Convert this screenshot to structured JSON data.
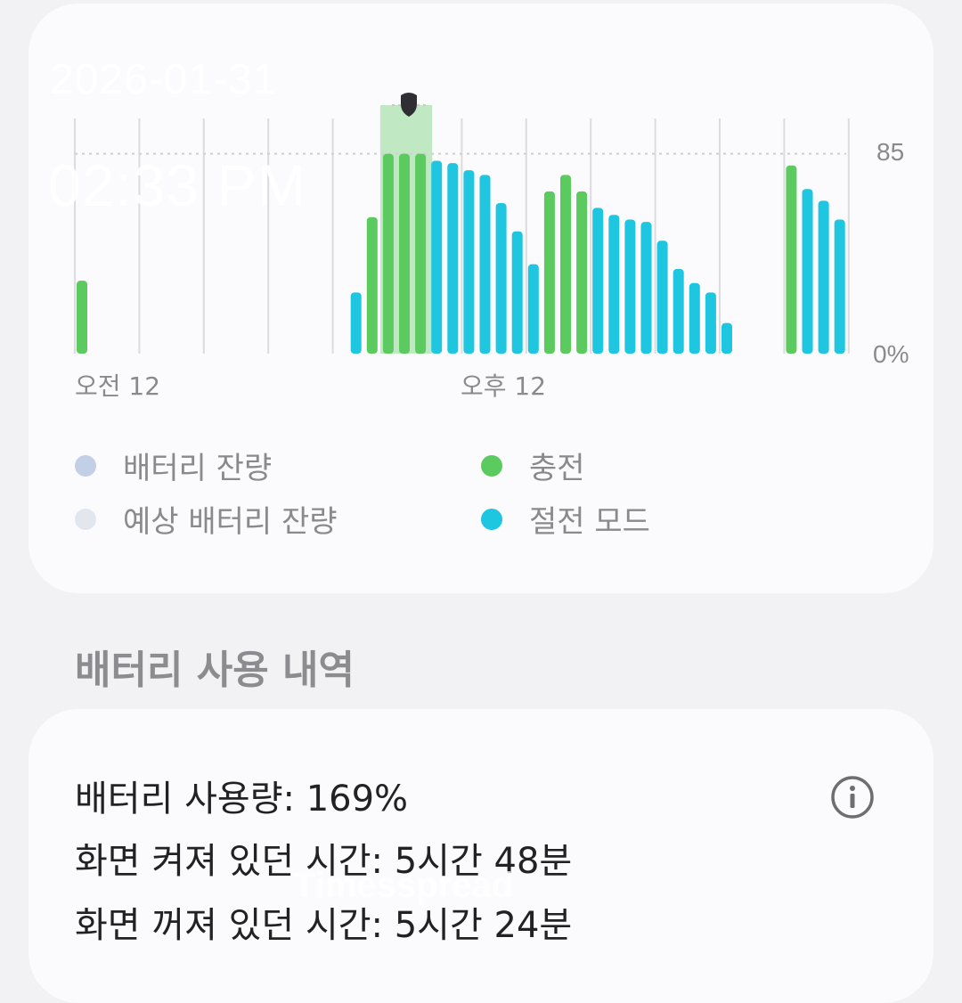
{
  "overlay": {
    "date": "2026-01-31",
    "time": "02:33 PM"
  },
  "chart_data": {
    "type": "bar",
    "y_axis_labels": [
      "85",
      "0%"
    ],
    "x_axis_labels": [
      "오전 12",
      "오후 12"
    ],
    "dotted_reference_level": 85,
    "ylim": [
      0,
      100
    ],
    "colors": {
      "charging": "#5ccb5f",
      "power_saving": "#1ec6e0",
      "highlight": "#bfe8c3",
      "grid": "#dcdcdf",
      "axis_text": "#8a8a8e"
    },
    "bars": [
      {
        "slot": 0,
        "value": 31,
        "mode": "charging"
      },
      {
        "slot": 17,
        "value": 26,
        "mode": "power_saving"
      },
      {
        "slot": 18,
        "value": 58,
        "mode": "charging"
      },
      {
        "slot": 19,
        "value": 85,
        "mode": "charging"
      },
      {
        "slot": 20,
        "value": 85,
        "mode": "charging"
      },
      {
        "slot": 21,
        "value": 85,
        "mode": "charging"
      },
      {
        "slot": 22,
        "value": 82,
        "mode": "power_saving"
      },
      {
        "slot": 23,
        "value": 81,
        "mode": "power_saving"
      },
      {
        "slot": 24,
        "value": 78,
        "mode": "power_saving"
      },
      {
        "slot": 25,
        "value": 76,
        "mode": "power_saving"
      },
      {
        "slot": 26,
        "value": 64,
        "mode": "power_saving"
      },
      {
        "slot": 27,
        "value": 52,
        "mode": "power_saving"
      },
      {
        "slot": 28,
        "value": 38,
        "mode": "power_saving"
      },
      {
        "slot": 29,
        "value": 69,
        "mode": "charging"
      },
      {
        "slot": 30,
        "value": 76,
        "mode": "charging"
      },
      {
        "slot": 31,
        "value": 69,
        "mode": "charging"
      },
      {
        "slot": 32,
        "value": 62,
        "mode": "power_saving"
      },
      {
        "slot": 33,
        "value": 59,
        "mode": "power_saving"
      },
      {
        "slot": 34,
        "value": 57,
        "mode": "power_saving"
      },
      {
        "slot": 35,
        "value": 56,
        "mode": "power_saving"
      },
      {
        "slot": 36,
        "value": 48,
        "mode": "power_saving"
      },
      {
        "slot": 37,
        "value": 36,
        "mode": "power_saving"
      },
      {
        "slot": 38,
        "value": 30,
        "mode": "power_saving"
      },
      {
        "slot": 39,
        "value": 26,
        "mode": "power_saving"
      },
      {
        "slot": 40,
        "value": 13,
        "mode": "power_saving"
      },
      {
        "slot": 44,
        "value": 80,
        "mode": "charging"
      },
      {
        "slot": 45,
        "value": 70,
        "mode": "power_saving"
      },
      {
        "slot": 46,
        "value": 65,
        "mode": "power_saving"
      },
      {
        "slot": 47,
        "value": 57,
        "mode": "power_saving"
      }
    ],
    "highlight_slots": [
      19,
      20,
      21
    ],
    "total_slots": 48
  },
  "legend": [
    {
      "label": "배터리 잔량",
      "color": "#c3cfe6"
    },
    {
      "label": "충전",
      "color": "#5ccb5f"
    },
    {
      "label": "예상 배터리 잔량",
      "color": "#e2e7ef"
    },
    {
      "label": "절전 모드",
      "color": "#1ec6e0"
    }
  ],
  "section": {
    "title": "배터리 사용 내역"
  },
  "usage": {
    "battery_usage": "배터리 사용량: 169%",
    "screen_on_time": "화면 켜져 있던 시간: 5시간 48분",
    "screen_off_time": "화면 꺼져 있던 시간: 5시간 24분"
  },
  "icons": {
    "info": "info-icon",
    "marker": "shield-marker-icon"
  },
  "watermark": "Timesspread"
}
